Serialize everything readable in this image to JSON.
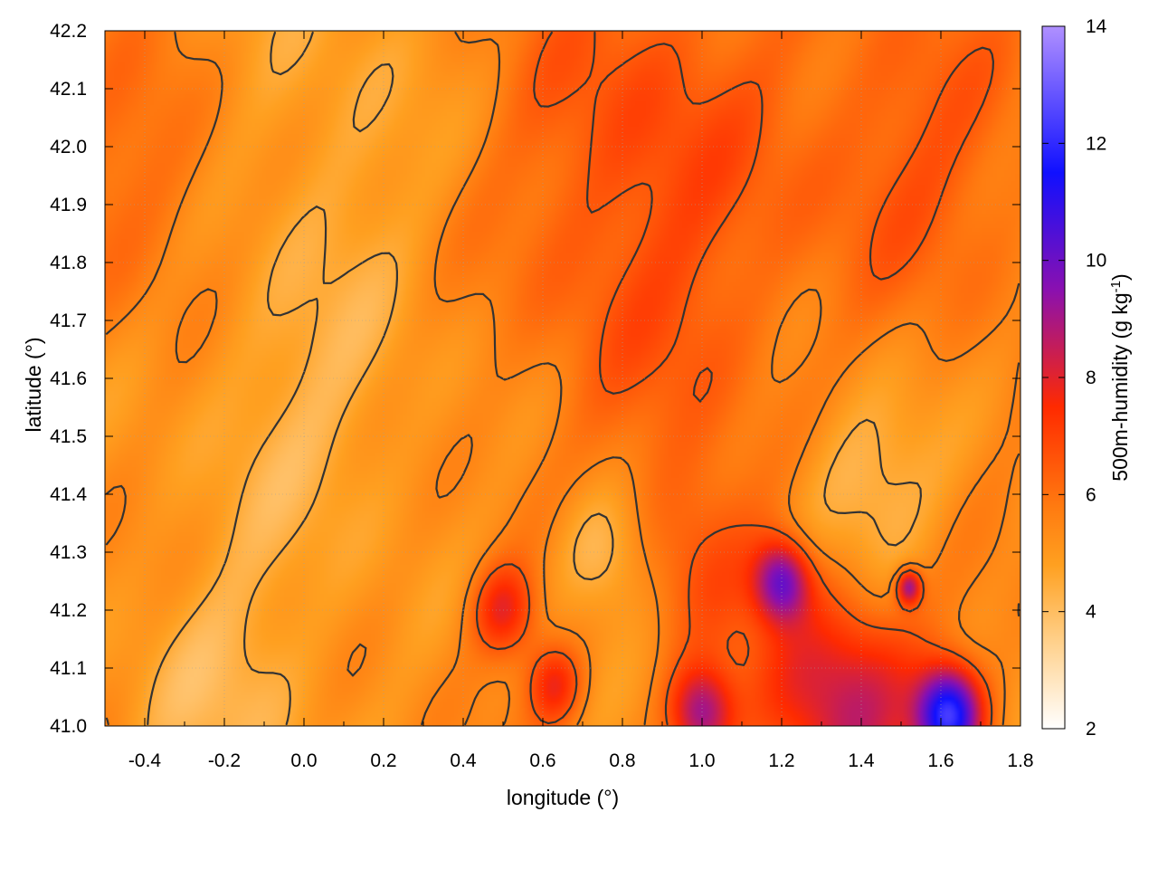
{
  "chart_data": {
    "type": "heatmap",
    "title": "",
    "xlabel": "longitude (°)",
    "ylabel": "latitude (°)",
    "colorbar_label_main": "500m-humidity (g kg",
    "colorbar_label_exp": "-1",
    "colorbar_label_close": ")",
    "xlim": [
      -0.5,
      1.8
    ],
    "ylim": [
      41.0,
      42.2
    ],
    "x_ticks": [
      "-0.4",
      "-0.2",
      "0.0",
      "0.2",
      "0.4",
      "0.6",
      "0.8",
      "1.0",
      "1.2",
      "1.4",
      "1.6",
      "1.8"
    ],
    "y_ticks": [
      "41.0",
      "41.1",
      "41.2",
      "41.3",
      "41.4",
      "41.5",
      "41.6",
      "41.7",
      "41.8",
      "41.9",
      "42.0",
      "42.1",
      "42.2"
    ],
    "colorbar_ticks": [
      "2",
      "4",
      "6",
      "8",
      "10",
      "12",
      "14"
    ],
    "color_range": [
      2,
      14
    ],
    "palette": [
      "#ffffff",
      "#ffd08a",
      "#ffa020",
      "#ff7a10",
      "#ff2a00",
      "#8a10b0",
      "#1010ff",
      "#b090ff"
    ],
    "palette_stops": [
      2,
      3.5,
      4.8,
      5.8,
      7.5,
      9.5,
      11.5,
      14
    ],
    "grid": true,
    "contour_color": "#333333",
    "fields": {
      "background": 5.3,
      "features": [
        {
          "lon": 0.85,
          "lat": 42.05,
          "value": 6.6,
          "radius": 0.35
        },
        {
          "lon": 1.55,
          "lat": 42.0,
          "value": 6.5,
          "radius": 0.3
        },
        {
          "lon": -0.4,
          "lat": 41.95,
          "value": 6.2,
          "radius": 0.25
        },
        {
          "lon": 0.9,
          "lat": 41.65,
          "value": 6.1,
          "radius": 0.35
        },
        {
          "lon": 0.0,
          "lat": 41.55,
          "value": 4.4,
          "radius": 0.3
        },
        {
          "lon": 0.05,
          "lat": 42.05,
          "value": 4.6,
          "radius": 0.3
        },
        {
          "lon": 0.5,
          "lat": 41.2,
          "value": 7.8,
          "radius": 0.08
        },
        {
          "lon": 0.63,
          "lat": 41.07,
          "value": 7.6,
          "radius": 0.07
        },
        {
          "lon": 1.2,
          "lat": 41.25,
          "value": 9.5,
          "radius": 0.07
        },
        {
          "lon": 1.0,
          "lat": 41.3,
          "value": 6.6,
          "radius": 0.15
        },
        {
          "lon": 1.35,
          "lat": 41.05,
          "value": 8.6,
          "radius": 0.2
        },
        {
          "lon": 1.62,
          "lat": 41.02,
          "value": 11.8,
          "radius": 0.08
        },
        {
          "lon": 1.0,
          "lat": 41.02,
          "value": 9.0,
          "radius": 0.08
        },
        {
          "lon": 0.75,
          "lat": 41.3,
          "value": 3.7,
          "radius": 0.12
        },
        {
          "lon": 1.4,
          "lat": 41.4,
          "value": 3.9,
          "radius": 0.18
        },
        {
          "lon": -0.2,
          "lat": 41.05,
          "value": 4.3,
          "radius": 0.25
        },
        {
          "lon": 1.52,
          "lat": 41.24,
          "value": 9.0,
          "radius": 0.03
        }
      ]
    }
  }
}
